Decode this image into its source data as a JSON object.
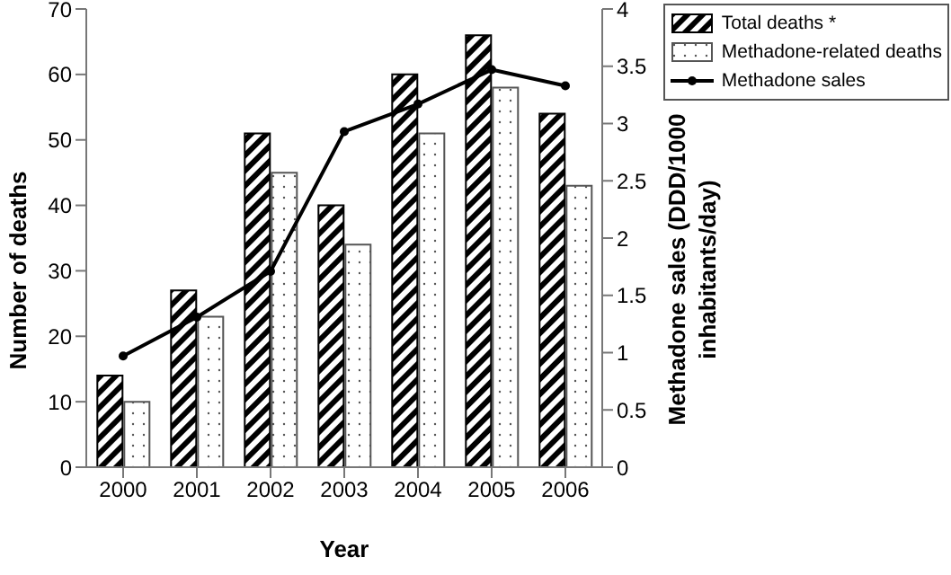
{
  "chart_data": {
    "type": "bar",
    "xlabel": "Year",
    "ylabel": "Number of deaths",
    "y2label": "Methadone sales (DDD/1000 inhabitants/day)",
    "categories": [
      "2000",
      "2001",
      "2002",
      "2003",
      "2004",
      "2005",
      "2006"
    ],
    "series": [
      {
        "name": "Total deaths *",
        "color": "#000000",
        "values": [
          14,
          27,
          51,
          40,
          60,
          66,
          54
        ]
      },
      {
        "name": "Methadone-related deaths",
        "color": "#555555",
        "values": [
          10,
          23,
          45,
          34,
          51,
          58,
          43
        ]
      },
      {
        "name": "Methadone sales",
        "type": "line",
        "axis": "y2",
        "color": "#000000",
        "values": [
          0.97,
          1.31,
          1.71,
          2.93,
          3.17,
          3.47,
          3.33
        ]
      }
    ],
    "ylim": [
      0,
      70
    ],
    "yticks": [
      0,
      10,
      20,
      30,
      40,
      50,
      60,
      70
    ],
    "y2lim": [
      0,
      4
    ],
    "y2ticks": [
      0,
      0.5,
      1,
      1.5,
      2,
      2.5,
      3,
      3.5,
      4
    ],
    "legend": "top right",
    "marker": "circle"
  }
}
